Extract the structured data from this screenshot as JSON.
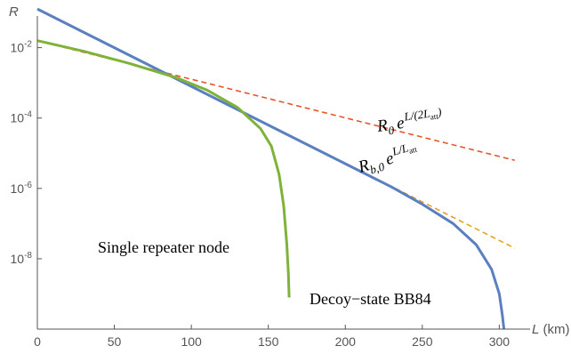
{
  "chart_data": {
    "type": "line",
    "title": "",
    "xlabel": "L",
    "xunit": " (km)",
    "ylabel": "R",
    "xlim": [
      0,
      320
    ],
    "ylim_log10": [
      -10,
      -1.1
    ],
    "yscale": "log",
    "grid": false,
    "x_ticks": [
      0,
      50,
      100,
      150,
      200,
      250,
      300
    ],
    "y_ticks": [
      {
        "exp": -2,
        "base": "10",
        "sup": "-2"
      },
      {
        "exp": -4,
        "base": "10",
        "sup": "-4"
      },
      {
        "exp": -6,
        "base": "10",
        "sup": "-6"
      },
      {
        "exp": -8,
        "base": "10",
        "sup": "-8"
      }
    ],
    "series": [
      {
        "color": "#e4572e",
        "dashed": true,
        "width": 1.6,
        "points": [
          [
            0,
            -1.8
          ],
          [
            310,
            -5.2
          ]
        ]
      },
      {
        "color": "#e5a01e",
        "dashed": true,
        "width": 1.6,
        "points": [
          [
            0,
            -0.9
          ],
          [
            310,
            -7.7
          ]
        ]
      },
      {
        "color": "#5b7fbf",
        "dashed": false,
        "width": 3,
        "points": [
          [
            0,
            -0.9
          ],
          [
            50,
            -2.0
          ],
          [
            100,
            -3.1
          ],
          [
            150,
            -4.2
          ],
          [
            200,
            -5.3
          ],
          [
            230,
            -5.96
          ],
          [
            250,
            -6.45
          ],
          [
            270,
            -7.0
          ],
          [
            285,
            -7.6
          ],
          [
            295,
            -8.3
          ],
          [
            300,
            -9.0
          ],
          [
            302,
            -9.6
          ],
          [
            303,
            -10.0
          ]
        ]
      },
      {
        "color": "#7fb23a",
        "dashed": false,
        "width": 3,
        "points": [
          [
            0,
            -1.8
          ],
          [
            30,
            -2.1
          ],
          [
            60,
            -2.45
          ],
          [
            90,
            -2.85
          ],
          [
            110,
            -3.2
          ],
          [
            130,
            -3.7
          ],
          [
            145,
            -4.3
          ],
          [
            152,
            -4.8
          ],
          [
            157,
            -5.6
          ],
          [
            160,
            -6.5
          ],
          [
            162,
            -7.6
          ],
          [
            163,
            -8.4
          ],
          [
            163.5,
            -9.1
          ]
        ]
      }
    ],
    "annotations": {
      "repeater": "Single repeater node",
      "bb84": "Decoy−state BB84",
      "formula1": {
        "base": "R",
        "sub": "0",
        "e": "e",
        "exp": "L/(2L",
        "expsub": "att",
        "close": ")"
      },
      "formula2": {
        "base": "R",
        "sub": "b,0",
        "e": "e",
        "exp": "L/L",
        "expsub": "att"
      }
    }
  }
}
